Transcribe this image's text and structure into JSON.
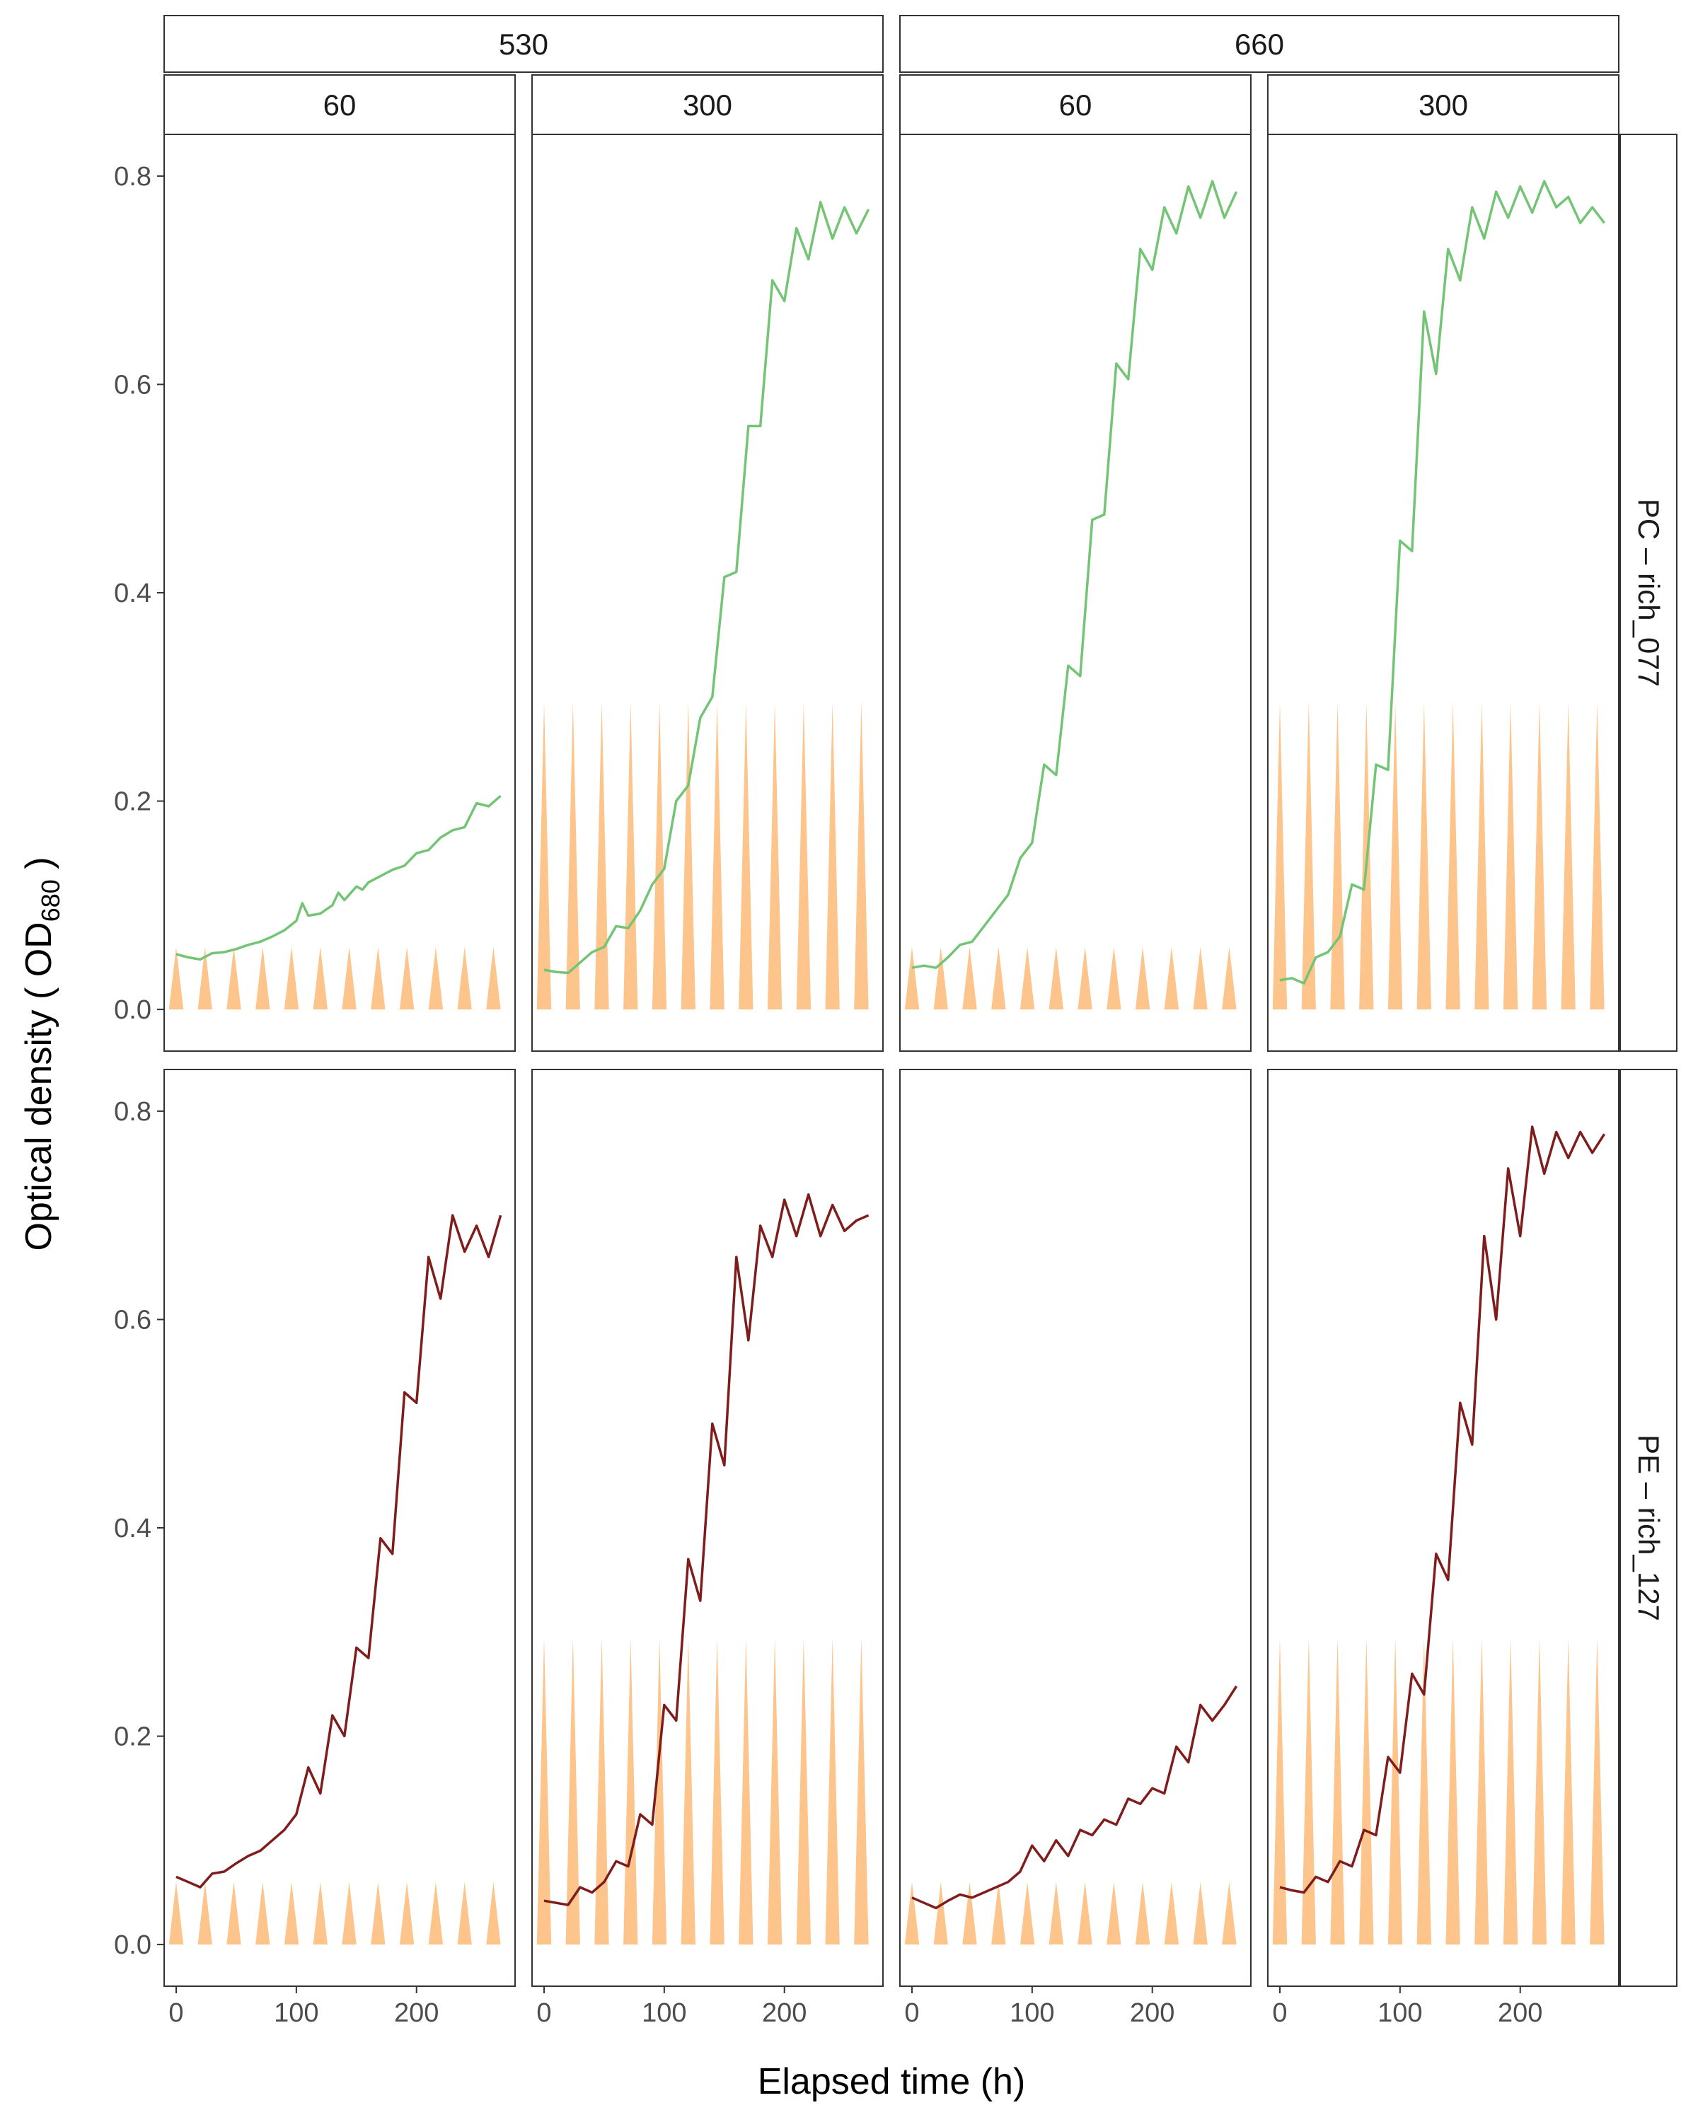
{
  "chart_data": {
    "type": "line",
    "title": "",
    "xlabel": "Elapsed time (h)",
    "ylabel_main": "Optical density ( OD",
    "ylabel_sub": "680",
    "ylabel_tail": " )",
    "xlim": [
      -10,
      282
    ],
    "ylim": [
      -0.04,
      0.84
    ],
    "xticks": [
      0,
      100,
      200
    ],
    "xtick_labels": [
      "0",
      "100",
      "200"
    ],
    "yticks": [
      0.0,
      0.2,
      0.4,
      0.6,
      0.8
    ],
    "ytick_labels": [
      "0.0",
      "0.2",
      "0.4",
      "0.6",
      "0.8"
    ],
    "grid": false,
    "column_groups": [
      {
        "label": "530",
        "columns": [
          0,
          1
        ]
      },
      {
        "label": "660",
        "columns": [
          2,
          3
        ]
      }
    ],
    "columns": [
      "60",
      "300",
      "60",
      "300"
    ],
    "rows": [
      {
        "label": "PC – rich_077",
        "color": "#74c476"
      },
      {
        "label": "PE – rich_127",
        "color": "#7f1d1d"
      }
    ],
    "light_color": "#fdc48c",
    "light_peaks": {
      "60": 0.06,
      "300": 0.295
    },
    "light_pulse_times": [
      0,
      24,
      48,
      72,
      96,
      120,
      144,
      168,
      192,
      216,
      240,
      264
    ],
    "light_pulse_halfwidth": 6,
    "panels": [
      {
        "row": 0,
        "col": 0,
        "x": [
          0,
          10,
          20,
          30,
          40,
          50,
          60,
          70,
          80,
          90,
          100,
          105,
          110,
          120,
          130,
          135,
          140,
          150,
          155,
          160,
          170,
          180,
          190,
          200,
          210,
          220,
          230,
          240,
          250,
          260,
          270
        ],
        "y": [
          0.053,
          0.05,
          0.048,
          0.054,
          0.055,
          0.058,
          0.062,
          0.065,
          0.07,
          0.076,
          0.085,
          0.102,
          0.09,
          0.092,
          0.1,
          0.112,
          0.105,
          0.118,
          0.115,
          0.122,
          0.128,
          0.134,
          0.138,
          0.15,
          0.153,
          0.165,
          0.172,
          0.175,
          0.198,
          0.195,
          0.205
        ]
      },
      {
        "row": 0,
        "col": 1,
        "x": [
          0,
          10,
          20,
          30,
          40,
          50,
          60,
          70,
          80,
          90,
          100,
          110,
          120,
          130,
          140,
          150,
          160,
          170,
          180,
          190,
          200,
          210,
          220,
          230,
          240,
          250,
          260,
          270
        ],
        "y": [
          0.038,
          0.036,
          0.035,
          0.045,
          0.055,
          0.06,
          0.08,
          0.078,
          0.095,
          0.12,
          0.135,
          0.2,
          0.215,
          0.28,
          0.3,
          0.415,
          0.42,
          0.56,
          0.56,
          0.7,
          0.68,
          0.75,
          0.72,
          0.775,
          0.74,
          0.77,
          0.745,
          0.768
        ]
      },
      {
        "row": 0,
        "col": 2,
        "x": [
          0,
          10,
          20,
          30,
          40,
          50,
          60,
          70,
          80,
          90,
          100,
          110,
          120,
          130,
          140,
          150,
          160,
          170,
          180,
          190,
          200,
          210,
          220,
          230,
          240,
          250,
          260,
          270
        ],
        "y": [
          0.04,
          0.042,
          0.04,
          0.05,
          0.062,
          0.065,
          0.08,
          0.095,
          0.11,
          0.145,
          0.16,
          0.235,
          0.225,
          0.33,
          0.32,
          0.47,
          0.475,
          0.62,
          0.605,
          0.73,
          0.71,
          0.77,
          0.745,
          0.79,
          0.76,
          0.795,
          0.76,
          0.785
        ]
      },
      {
        "row": 0,
        "col": 3,
        "x": [
          0,
          10,
          20,
          30,
          40,
          50,
          60,
          70,
          80,
          90,
          100,
          110,
          120,
          130,
          140,
          150,
          160,
          170,
          180,
          190,
          200,
          210,
          220,
          230,
          240,
          250,
          260,
          270
        ],
        "y": [
          0.028,
          0.03,
          0.025,
          0.05,
          0.055,
          0.07,
          0.12,
          0.115,
          0.235,
          0.23,
          0.45,
          0.44,
          0.67,
          0.61,
          0.73,
          0.7,
          0.77,
          0.74,
          0.785,
          0.76,
          0.79,
          0.765,
          0.795,
          0.77,
          0.78,
          0.755,
          0.77,
          0.755
        ]
      },
      {
        "row": 1,
        "col": 0,
        "x": [
          0,
          10,
          20,
          30,
          40,
          50,
          60,
          70,
          80,
          90,
          100,
          110,
          120,
          130,
          140,
          150,
          160,
          170,
          180,
          190,
          200,
          210,
          220,
          230,
          240,
          250,
          260,
          270
        ],
        "y": [
          0.065,
          0.06,
          0.055,
          0.068,
          0.07,
          0.078,
          0.085,
          0.09,
          0.1,
          0.11,
          0.125,
          0.17,
          0.145,
          0.22,
          0.2,
          0.285,
          0.275,
          0.39,
          0.375,
          0.53,
          0.52,
          0.66,
          0.62,
          0.7,
          0.665,
          0.69,
          0.66,
          0.7
        ]
      },
      {
        "row": 1,
        "col": 1,
        "x": [
          0,
          10,
          20,
          30,
          40,
          50,
          60,
          70,
          80,
          90,
          100,
          110,
          120,
          130,
          140,
          150,
          160,
          170,
          180,
          190,
          200,
          210,
          220,
          230,
          240,
          250,
          260,
          270
        ],
        "y": [
          0.042,
          0.04,
          0.038,
          0.055,
          0.05,
          0.06,
          0.08,
          0.075,
          0.125,
          0.115,
          0.23,
          0.215,
          0.37,
          0.33,
          0.5,
          0.46,
          0.66,
          0.58,
          0.69,
          0.66,
          0.715,
          0.68,
          0.72,
          0.68,
          0.71,
          0.685,
          0.695,
          0.7
        ]
      },
      {
        "row": 1,
        "col": 2,
        "x": [
          0,
          10,
          20,
          30,
          40,
          50,
          60,
          70,
          80,
          90,
          100,
          110,
          120,
          130,
          140,
          150,
          160,
          170,
          180,
          190,
          200,
          210,
          220,
          230,
          240,
          250,
          260,
          270
        ],
        "y": [
          0.045,
          0.04,
          0.035,
          0.042,
          0.048,
          0.045,
          0.05,
          0.055,
          0.06,
          0.07,
          0.095,
          0.08,
          0.1,
          0.085,
          0.11,
          0.105,
          0.12,
          0.115,
          0.14,
          0.135,
          0.15,
          0.145,
          0.19,
          0.175,
          0.23,
          0.215,
          0.23,
          0.248
        ]
      },
      {
        "row": 1,
        "col": 3,
        "x": [
          0,
          10,
          20,
          30,
          40,
          50,
          60,
          70,
          80,
          90,
          100,
          110,
          120,
          130,
          140,
          150,
          160,
          170,
          180,
          190,
          200,
          210,
          220,
          230,
          240,
          250,
          260,
          270
        ],
        "y": [
          0.055,
          0.052,
          0.05,
          0.065,
          0.06,
          0.08,
          0.075,
          0.11,
          0.105,
          0.18,
          0.165,
          0.26,
          0.24,
          0.375,
          0.35,
          0.52,
          0.48,
          0.68,
          0.6,
          0.745,
          0.68,
          0.785,
          0.74,
          0.78,
          0.755,
          0.78,
          0.76,
          0.778
        ]
      }
    ]
  }
}
